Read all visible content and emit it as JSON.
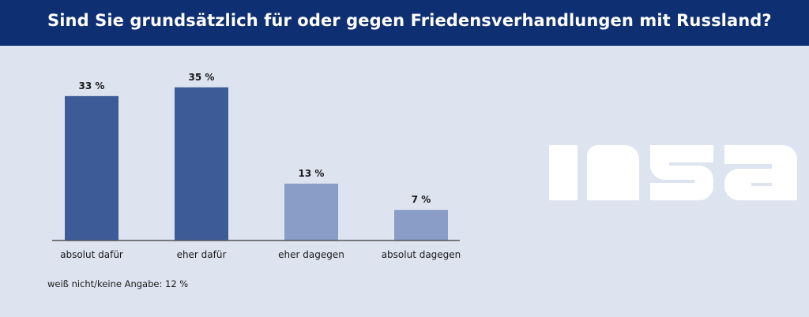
{
  "header": {
    "title": "Sind Sie grundsätzlich für oder gegen Friedensverhandlungen mit Russland?"
  },
  "chart_data": {
    "type": "bar",
    "categories": [
      "absolut dafür",
      "eher dafür",
      "eher dagegen",
      "absolut dagegen"
    ],
    "values": [
      33,
      35,
      13,
      7
    ],
    "value_labels": [
      "33 %",
      "35 %",
      "13 %",
      "7 %"
    ],
    "colors": [
      "#3d5c97",
      "#3d5c97",
      "#899dc7",
      "#899dc7"
    ],
    "ylim": [
      0,
      40
    ],
    "grid": false,
    "title": "",
    "xlabel": "",
    "ylabel": ""
  },
  "footnote": "weiß nicht/keine Angabe: 12 %",
  "logo": {
    "text": "INSA",
    "color": "#ffffff"
  },
  "colors": {
    "header_bg": "#0e2f72",
    "page_bg": "#dde3ef",
    "axis": "#555555"
  }
}
